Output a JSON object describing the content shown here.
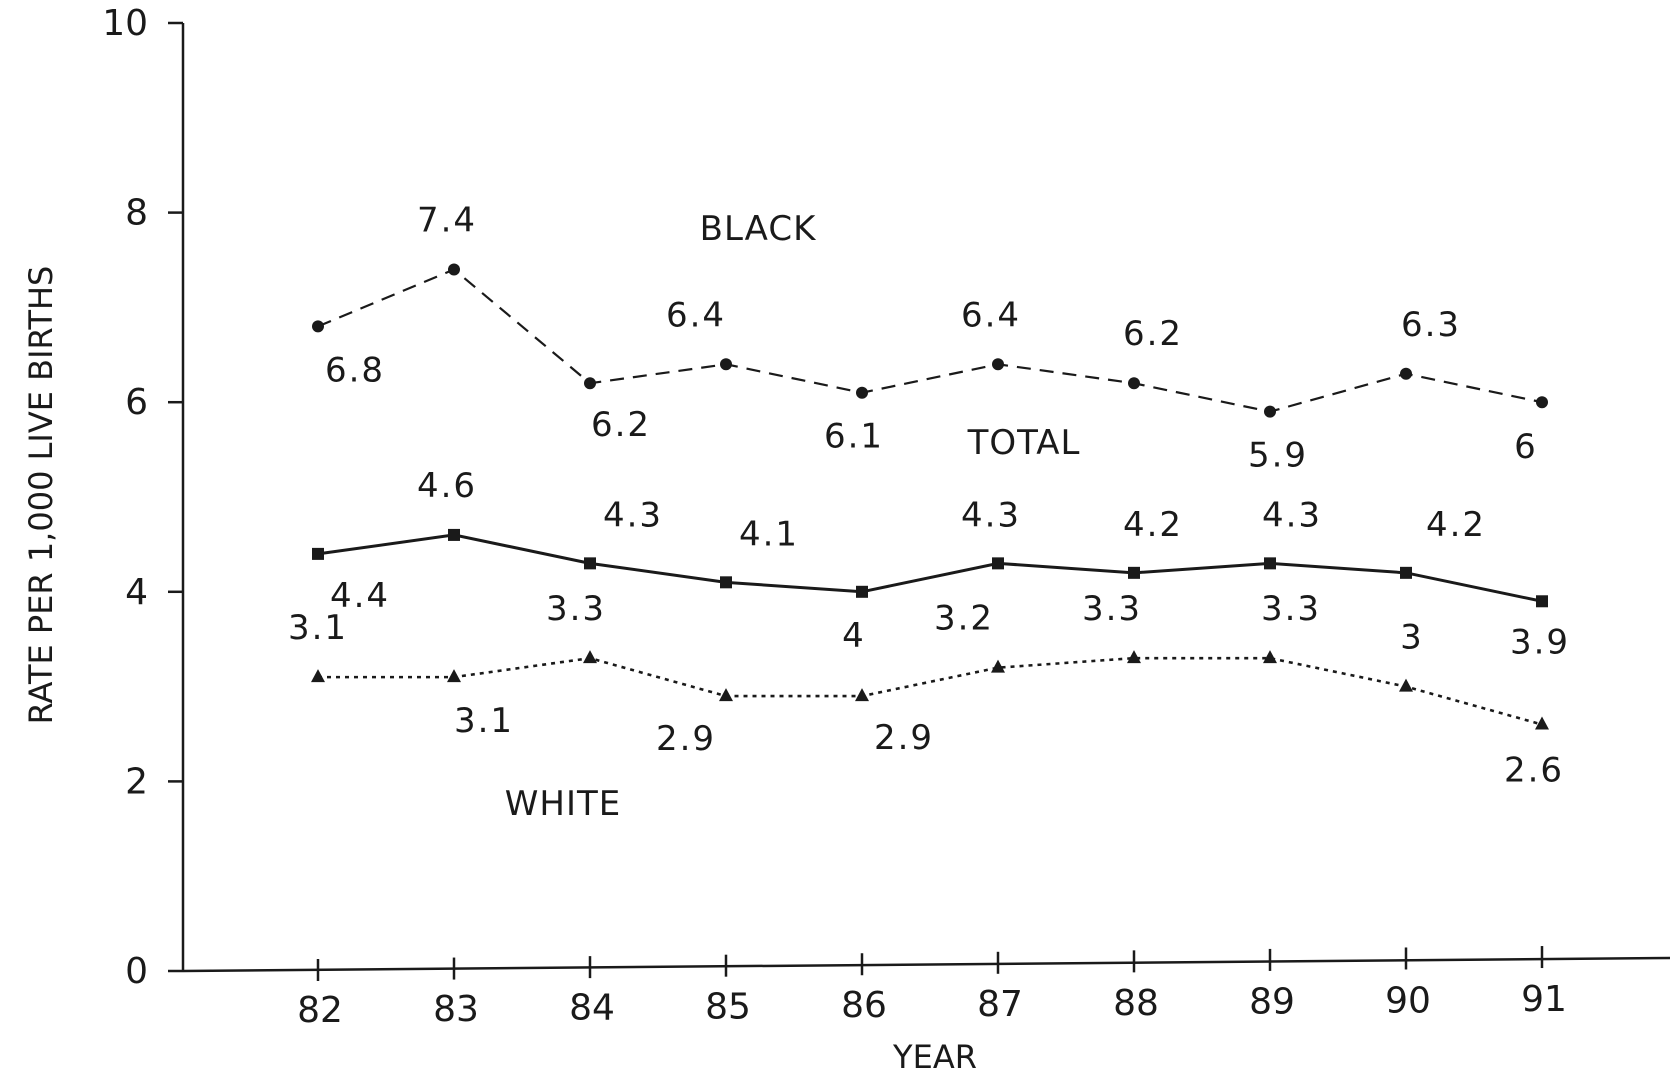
{
  "chart_data": {
    "type": "line",
    "title": "",
    "xlabel": "YEAR",
    "ylabel": "RATE PER 1,000 LIVE BIRTHS",
    "ylim": [
      0,
      10
    ],
    "yticks": [
      "0",
      "2",
      "4",
      "6",
      "8",
      "10"
    ],
    "categories": [
      "82",
      "83",
      "84",
      "85",
      "86",
      "87",
      "88",
      "89",
      "90",
      "91"
    ],
    "grid": false,
    "legend": "none (series named by inline labels)",
    "series": [
      {
        "name": "BLACK",
        "values": [
          6.8,
          7.4,
          6.2,
          6.4,
          6.1,
          6.4,
          6.2,
          5.9,
          6.3,
          6
        ],
        "labels": [
          "6.8",
          "7.4",
          "6.2",
          "6.4",
          "6.1",
          "6.4",
          "6.2",
          "5.9",
          "6.3",
          "6"
        ],
        "line_style": "dashed",
        "marker": "circle"
      },
      {
        "name": "TOTAL",
        "values": [
          4.4,
          4.6,
          4.3,
          4.1,
          4,
          4.3,
          4.2,
          4.3,
          4.2,
          3.9
        ],
        "labels": [
          "4.4",
          "4.6",
          "4.3",
          "4.1",
          "4",
          "4.3",
          "4.2",
          "4.3",
          "4.2",
          "3.9"
        ],
        "line_style": "solid",
        "marker": "square"
      },
      {
        "name": "WHITE",
        "values": [
          3.1,
          3.1,
          3.3,
          2.9,
          2.9,
          3.2,
          3.3,
          3.3,
          3,
          2.6
        ],
        "labels": [
          "3.1",
          "3.1",
          "3.3",
          "2.9",
          "2.9",
          "3.2",
          "3.3",
          "3.3",
          "3",
          "2.6"
        ],
        "line_style": "dotted",
        "marker": "triangle"
      }
    ],
    "colors": {
      "ink": "#1a1a1a",
      "background": "#ffffff"
    }
  }
}
